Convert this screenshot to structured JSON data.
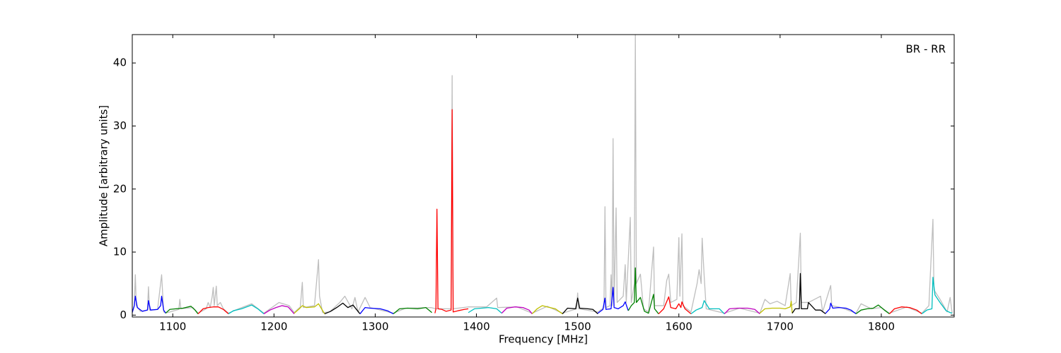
{
  "chart_data": {
    "type": "line",
    "xlabel": "Frequency [MHz]",
    "ylabel": "Amplitude [arbitrary units]",
    "annotation": "BR - RR",
    "xlim": [
      1060,
      1872
    ],
    "ylim": [
      -0.3,
      44.5
    ],
    "xticks": [
      1100,
      1200,
      1300,
      1400,
      1500,
      1600,
      1700,
      1800
    ],
    "yticks": [
      0,
      10,
      20,
      30,
      40
    ],
    "series": [
      {
        "color": "#bebebe",
        "x": [
          1060,
          1062,
          1063,
          1064,
          1068,
          1075,
          1076,
          1077,
          1085,
          1089,
          1091,
          1095,
          1106,
          1107,
          1108,
          1120,
          1125,
          1133,
          1135,
          1137,
          1139,
          1140,
          1141,
          1143,
          1144,
          1147,
          1150,
          1155,
          1165,
          1178,
          1190,
          1205,
          1215,
          1220,
          1226,
          1228,
          1229,
          1240,
          1244,
          1245,
          1248,
          1255,
          1265,
          1270,
          1277,
          1280,
          1283,
          1290,
          1295,
          1318,
          1330,
          1355,
          1360,
          1375,
          1376,
          1377,
          1392,
          1410,
          1420,
          1421,
          1440,
          1455,
          1470,
          1485,
          1499,
          1500,
          1501,
          1520,
          1526,
          1527,
          1528,
          1532,
          1533,
          1534,
          1535,
          1536,
          1538,
          1539,
          1545,
          1547,
          1548,
          1552,
          1553,
          1556,
          1557,
          1558,
          1562,
          1565,
          1570,
          1575,
          1576,
          1585,
          1588,
          1590,
          1592,
          1598,
          1600,
          1601,
          1602,
          1603,
          1604,
          1612,
          1618,
          1620,
          1622,
          1623,
          1625,
          1627,
          1645,
          1660,
          1680,
          1685,
          1690,
          1697,
          1705,
          1710,
          1711,
          1716,
          1720,
          1721,
          1728,
          1740,
          1742,
          1750,
          1751,
          1760,
          1775,
          1780,
          1790,
          1800,
          1808,
          1825,
          1840,
          1847,
          1851,
          1852,
          1858,
          1865,
          1868,
          1870
        ],
        "values": [
          0.5,
          1.5,
          6.4,
          1.5,
          0.6,
          0.8,
          4.5,
          0.8,
          0.9,
          6.4,
          0.5,
          0.4,
          0.9,
          2.5,
          1.0,
          1.2,
          0.3,
          1.0,
          2.0,
          1.2,
          3.0,
          4.4,
          1.5,
          4.6,
          1.5,
          2.0,
          1.0,
          0.3,
          1.0,
          1.8,
          0.3,
          2.0,
          1.5,
          0.4,
          1.3,
          5.2,
          1.2,
          1.5,
          8.8,
          3.0,
          0.4,
          0.5,
          2.0,
          3.0,
          1.0,
          2.8,
          0.5,
          2.8,
          1.2,
          0.3,
          1.1,
          1.2,
          1.0,
          1.0,
          38,
          1.0,
          1.3,
          1.3,
          2.7,
          1.2,
          1.3,
          0.3,
          1.4,
          0.3,
          1.0,
          3.5,
          1.0,
          0.5,
          1.2,
          17.2,
          1.2,
          1.5,
          6.4,
          1.5,
          28,
          1.5,
          17,
          2.0,
          3.0,
          8.0,
          2.0,
          15.5,
          2.0,
          5,
          44.5,
          5,
          6.5,
          1.0,
          0.5,
          10.8,
          1.5,
          1.5,
          5.5,
          6.5,
          2.0,
          2.5,
          12.3,
          3.0,
          8.0,
          12.9,
          1.5,
          0.5,
          5,
          7.2,
          5,
          12.2,
          6.2,
          1.0,
          0.3,
          1.1,
          0.3,
          2.5,
          1.8,
          2.2,
          1.5,
          6.6,
          1.5,
          2.0,
          13,
          2.0,
          2.0,
          3.0,
          0.5,
          4.7,
          1.5,
          1.2,
          0.3,
          1.8,
          1.0,
          1.2,
          0.3,
          1.3,
          0.3,
          1.5,
          15.2,
          4.0,
          2.5,
          0.5,
          2.8,
          0.3
        ]
      },
      {
        "color": "#0000ff",
        "x": [
          1060,
          1062,
          1063,
          1065,
          1070,
          1075,
          1076,
          1078,
          1085,
          1088,
          1089,
          1091,
          1093
        ],
        "values": [
          0.4,
          1.5,
          3.0,
          1.2,
          0.6,
          0.8,
          2.3,
          0.8,
          0.9,
          1.5,
          3.0,
          0.8,
          0.3
        ]
      },
      {
        "color": "#008000",
        "x": [
          1093,
          1097,
          1103,
          1110,
          1118,
          1122,
          1125
        ],
        "values": [
          0.3,
          0.9,
          1.0,
          1.1,
          1.4,
          0.8,
          0.2
        ]
      },
      {
        "color": "#ff0000",
        "x": [
          1125,
          1130,
          1135,
          1140,
          1145,
          1150,
          1155
        ],
        "values": [
          0.2,
          1.0,
          1.2,
          1.3,
          1.3,
          0.9,
          0.2
        ]
      },
      {
        "color": "#00bfbf",
        "x": [
          1155,
          1160,
          1168,
          1178,
          1184,
          1190
        ],
        "values": [
          0.2,
          0.7,
          1.0,
          1.6,
          1.0,
          0.2
        ]
      },
      {
        "color": "#bf00bf",
        "x": [
          1190,
          1196,
          1202,
          1208,
          1214,
          1220
        ],
        "values": [
          0.2,
          0.8,
          1.2,
          1.5,
          1.3,
          0.2
        ]
      },
      {
        "color": "#bfbf00",
        "x": [
          1220,
          1225,
          1228,
          1232,
          1240,
          1244,
          1247,
          1250
        ],
        "values": [
          0.3,
          1.0,
          1.5,
          1.2,
          1.3,
          1.8,
          1.0,
          0.2
        ]
      },
      {
        "color": "#000000",
        "x": [
          1250,
          1256,
          1262,
          1268,
          1273,
          1278,
          1282,
          1285
        ],
        "values": [
          0.2,
          0.6,
          1.2,
          1.9,
          1.2,
          1.6,
          0.8,
          0.2
        ]
      },
      {
        "color": "#0000ff",
        "x": [
          1285,
          1290,
          1295,
          1305,
          1312,
          1318
        ],
        "values": [
          0.2,
          1.2,
          1.1,
          1.0,
          0.7,
          0.2
        ]
      },
      {
        "color": "#008000",
        "x": [
          1318,
          1324,
          1332,
          1342,
          1350,
          1356
        ],
        "values": [
          0.2,
          1.0,
          1.1,
          1.0,
          1.2,
          0.4
        ]
      },
      {
        "color": "#ff0000",
        "x": [
          1359,
          1360,
          1361,
          1362,
          1366,
          1370,
          1375,
          1376,
          1377,
          1382,
          1388,
          1392
        ],
        "values": [
          0.3,
          1.0,
          16.8,
          1.0,
          0.9,
          0.6,
          0.8,
          32.6,
          0.5,
          0.7,
          0.9,
          1.0
        ]
      },
      {
        "color": "#00bfbf",
        "x": [
          1392,
          1398,
          1405,
          1412,
          1420,
          1425
        ],
        "values": [
          0.4,
          1.0,
          1.1,
          1.2,
          1.0,
          0.3
        ]
      },
      {
        "color": "#bf00bf",
        "x": [
          1425,
          1430,
          1438,
          1446,
          1452,
          1455
        ],
        "values": [
          0.3,
          1.1,
          1.3,
          1.2,
          0.8,
          0.2
        ]
      },
      {
        "color": "#bfbf00",
        "x": [
          1455,
          1460,
          1465,
          1470,
          1478,
          1485
        ],
        "values": [
          0.2,
          1.0,
          1.5,
          1.3,
          1.0,
          0.2
        ]
      },
      {
        "color": "#000000",
        "x": [
          1485,
          1490,
          1498,
          1500,
          1502,
          1510,
          1515,
          1520
        ],
        "values": [
          0.2,
          1.1,
          1.0,
          2.7,
          1.1,
          1.0,
          0.9,
          0.2
        ]
      },
      {
        "color": "#0000ff",
        "x": [
          1520,
          1525,
          1527,
          1528,
          1533,
          1535,
          1536,
          1540,
          1545,
          1547,
          1550
        ],
        "values": [
          0.3,
          0.9,
          2.7,
          0.9,
          1.0,
          4.4,
          1.2,
          1.0,
          1.5,
          2.1,
          0.7
        ]
      },
      {
        "color": "#008000",
        "x": [
          1550,
          1553,
          1556,
          1557,
          1558,
          1562,
          1566,
          1570,
          1575,
          1576,
          1580
        ],
        "values": [
          0.7,
          1.5,
          2.0,
          7.5,
          2.0,
          2.8,
          0.6,
          0.3,
          3.3,
          1.0,
          0.2
        ]
      },
      {
        "color": "#ff0000",
        "x": [
          1580,
          1585,
          1590,
          1592,
          1597,
          1600,
          1602,
          1603,
          1606,
          1612
        ],
        "values": [
          0.2,
          1.0,
          2.9,
          1.2,
          1.0,
          1.8,
          1.2,
          2.1,
          1.0,
          0.2
        ]
      },
      {
        "color": "#00bfbf",
        "x": [
          1612,
          1617,
          1620,
          1623,
          1625,
          1630,
          1640,
          1645
        ],
        "values": [
          0.2,
          0.8,
          1.0,
          1.2,
          2.3,
          1.0,
          1.0,
          0.2
        ]
      },
      {
        "color": "#bf00bf",
        "x": [
          1645,
          1650,
          1658,
          1668,
          1675,
          1680
        ],
        "values": [
          0.2,
          1.0,
          1.1,
          1.1,
          0.9,
          0.2
        ]
      },
      {
        "color": "#bfbf00",
        "x": [
          1680,
          1685,
          1692,
          1700,
          1705,
          1710,
          1711,
          1712
        ],
        "values": [
          0.3,
          1.0,
          1.1,
          1.1,
          1.0,
          1.3,
          2.2,
          0.3
        ]
      },
      {
        "color": "#000000",
        "x": [
          1712,
          1715,
          1719,
          1720,
          1721,
          1727,
          1728,
          1735,
          1740,
          1745
        ],
        "values": [
          0.3,
          1.0,
          1.0,
          6.6,
          1.0,
          1.0,
          2.0,
          0.8,
          0.8,
          0.2
        ]
      },
      {
        "color": "#0000ff",
        "x": [
          1745,
          1749,
          1750,
          1752,
          1758,
          1765,
          1770,
          1775
        ],
        "values": [
          0.3,
          1.0,
          1.9,
          1.1,
          1.2,
          1.1,
          0.8,
          0.2
        ]
      },
      {
        "color": "#008000",
        "x": [
          1775,
          1780,
          1786,
          1792,
          1797,
          1803,
          1808
        ],
        "values": [
          0.2,
          0.8,
          1.0,
          1.1,
          1.6,
          0.8,
          0.2
        ]
      },
      {
        "color": "#ff0000",
        "x": [
          1808,
          1813,
          1820,
          1828,
          1835,
          1840
        ],
        "values": [
          0.2,
          1.0,
          1.3,
          1.2,
          0.8,
          0.2
        ]
      },
      {
        "color": "#00bfbf",
        "x": [
          1840,
          1845,
          1850,
          1851,
          1853,
          1858,
          1864,
          1868,
          1870
        ],
        "values": [
          0.2,
          0.8,
          1.0,
          6.0,
          3.2,
          2.0,
          0.7,
          0.4,
          0.3
        ]
      }
    ]
  }
}
